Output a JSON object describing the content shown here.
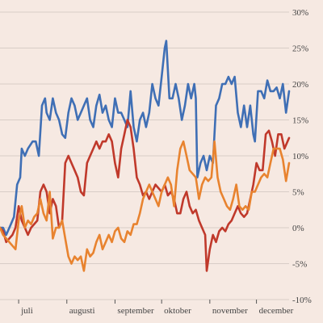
{
  "chart_data": {
    "type": "line",
    "title": "",
    "xlabel": "",
    "ylabel": "",
    "y_unit": "%",
    "ylim": [
      -10,
      30
    ],
    "yticks": [
      -10,
      -5,
      0,
      5,
      10,
      15,
      20,
      25,
      30
    ],
    "ytick_labels": [
      "-10%",
      "-5%",
      "0%",
      "5%",
      "10%",
      "15%",
      "20%",
      "25%",
      "30%"
    ],
    "y_axis_side": "right",
    "grid": "horizontal",
    "legend": "none",
    "x_domain": [
      "2023-06-19",
      "2023-12-22"
    ],
    "month_ticks": [
      {
        "label": "juli",
        "date": "2023-07-01"
      },
      {
        "label": "augusti",
        "date": "2023-08-01"
      },
      {
        "label": "september",
        "date": "2023-09-01"
      },
      {
        "label": "oktober",
        "date": "2023-10-01"
      },
      {
        "label": "november",
        "date": "2023-11-01"
      },
      {
        "label": "december",
        "date": "2023-12-01"
      }
    ],
    "series": [
      {
        "color": "#3f6fb5",
        "points": [
          [
            "2023-06-19",
            0
          ],
          [
            "2023-06-21",
            0
          ],
          [
            "2023-06-23",
            -1
          ],
          [
            "2023-06-26",
            0.5
          ],
          [
            "2023-06-28",
            1.5
          ],
          [
            "2023-06-30",
            6
          ],
          [
            "2023-07-02",
            7
          ],
          [
            "2023-07-03",
            11
          ],
          [
            "2023-07-05",
            10
          ],
          [
            "2023-07-07",
            11
          ],
          [
            "2023-07-10",
            12
          ],
          [
            "2023-07-12",
            12
          ],
          [
            "2023-07-14",
            10
          ],
          [
            "2023-07-16",
            17
          ],
          [
            "2023-07-18",
            18
          ],
          [
            "2023-07-19",
            16
          ],
          [
            "2023-07-21",
            15
          ],
          [
            "2023-07-23",
            18
          ],
          [
            "2023-07-25",
            16
          ],
          [
            "2023-07-27",
            15
          ],
          [
            "2023-07-29",
            13
          ],
          [
            "2023-07-31",
            12.5
          ],
          [
            "2023-08-02",
            16
          ],
          [
            "2023-08-04",
            18
          ],
          [
            "2023-08-06",
            17
          ],
          [
            "2023-08-08",
            15
          ],
          [
            "2023-08-10",
            16
          ],
          [
            "2023-08-12",
            17
          ],
          [
            "2023-08-14",
            18
          ],
          [
            "2023-08-16",
            15
          ],
          [
            "2023-08-18",
            14
          ],
          [
            "2023-08-20",
            17
          ],
          [
            "2023-08-22",
            18.5
          ],
          [
            "2023-08-24",
            16
          ],
          [
            "2023-08-26",
            17
          ],
          [
            "2023-08-28",
            15
          ],
          [
            "2023-08-30",
            14
          ],
          [
            "2023-09-01",
            18
          ],
          [
            "2023-09-03",
            16
          ],
          [
            "2023-09-05",
            16
          ],
          [
            "2023-09-07",
            15
          ],
          [
            "2023-09-09",
            14
          ],
          [
            "2023-09-11",
            19
          ],
          [
            "2023-09-13",
            14
          ],
          [
            "2023-09-15",
            12
          ],
          [
            "2023-09-17",
            15
          ],
          [
            "2023-09-19",
            16
          ],
          [
            "2023-09-21",
            14
          ],
          [
            "2023-09-23",
            16
          ],
          [
            "2023-09-25",
            20
          ],
          [
            "2023-09-27",
            18
          ],
          [
            "2023-09-29",
            17
          ],
          [
            "2023-10-01",
            21
          ],
          [
            "2023-10-03",
            25
          ],
          [
            "2023-10-04",
            26
          ],
          [
            "2023-10-06",
            18
          ],
          [
            "2023-10-08",
            18
          ],
          [
            "2023-10-10",
            20
          ],
          [
            "2023-10-12",
            18
          ],
          [
            "2023-10-14",
            15
          ],
          [
            "2023-10-16",
            17
          ],
          [
            "2023-10-18",
            20
          ],
          [
            "2023-10-20",
            18
          ],
          [
            "2023-10-22",
            20
          ],
          [
            "2023-10-23",
            18
          ],
          [
            "2023-10-24",
            7
          ],
          [
            "2023-10-26",
            9
          ],
          [
            "2023-10-28",
            10
          ],
          [
            "2023-10-30",
            8
          ],
          [
            "2023-11-01",
            10
          ],
          [
            "2023-11-03",
            9
          ],
          [
            "2023-11-05",
            17
          ],
          [
            "2023-11-07",
            18
          ],
          [
            "2023-11-09",
            20
          ],
          [
            "2023-11-11",
            20
          ],
          [
            "2023-11-13",
            21
          ],
          [
            "2023-11-15",
            20
          ],
          [
            "2023-11-17",
            21
          ],
          [
            "2023-11-19",
            16
          ],
          [
            "2023-11-21",
            14
          ],
          [
            "2023-11-23",
            17
          ],
          [
            "2023-11-25",
            14
          ],
          [
            "2023-11-27",
            17
          ],
          [
            "2023-11-29",
            13
          ],
          [
            "2023-11-30",
            12
          ],
          [
            "2023-12-02",
            19
          ],
          [
            "2023-12-04",
            19
          ],
          [
            "2023-12-06",
            18
          ],
          [
            "2023-12-08",
            20.5
          ],
          [
            "2023-12-10",
            19
          ],
          [
            "2023-12-12",
            19
          ],
          [
            "2023-12-14",
            19.5
          ],
          [
            "2023-12-16",
            18
          ],
          [
            "2023-12-18",
            20
          ],
          [
            "2023-12-20",
            16
          ],
          [
            "2023-12-22",
            19
          ]
        ]
      },
      {
        "color": "#c0392b",
        "points": [
          [
            "2023-06-19",
            0
          ],
          [
            "2023-06-21",
            -0.5
          ],
          [
            "2023-06-23",
            -2
          ],
          [
            "2023-06-25",
            -1.5
          ],
          [
            "2023-06-27",
            -1
          ],
          [
            "2023-06-29",
            0
          ],
          [
            "2023-07-01",
            3
          ],
          [
            "2023-07-03",
            1
          ],
          [
            "2023-07-05",
            0
          ],
          [
            "2023-07-07",
            -1
          ],
          [
            "2023-07-09",
            0
          ],
          [
            "2023-07-11",
            0.5
          ],
          [
            "2023-07-13",
            1
          ],
          [
            "2023-07-15",
            5
          ],
          [
            "2023-07-17",
            6
          ],
          [
            "2023-07-19",
            5
          ],
          [
            "2023-07-21",
            2
          ],
          [
            "2023-07-23",
            4
          ],
          [
            "2023-07-25",
            3
          ],
          [
            "2023-07-27",
            0
          ],
          [
            "2023-07-29",
            1
          ],
          [
            "2023-07-31",
            9
          ],
          [
            "2023-08-02",
            10
          ],
          [
            "2023-08-04",
            9
          ],
          [
            "2023-08-06",
            8
          ],
          [
            "2023-08-08",
            7
          ],
          [
            "2023-08-10",
            5
          ],
          [
            "2023-08-12",
            4.5
          ],
          [
            "2023-08-14",
            9
          ],
          [
            "2023-08-16",
            10
          ],
          [
            "2023-08-18",
            11
          ],
          [
            "2023-08-20",
            12
          ],
          [
            "2023-08-22",
            11
          ],
          [
            "2023-08-24",
            12
          ],
          [
            "2023-08-26",
            12
          ],
          [
            "2023-08-28",
            13
          ],
          [
            "2023-08-30",
            12
          ],
          [
            "2023-09-01",
            9
          ],
          [
            "2023-09-03",
            7
          ],
          [
            "2023-09-05",
            11
          ],
          [
            "2023-09-07",
            13
          ],
          [
            "2023-09-09",
            15
          ],
          [
            "2023-09-11",
            14
          ],
          [
            "2023-09-13",
            11
          ],
          [
            "2023-09-15",
            7
          ],
          [
            "2023-09-17",
            6
          ],
          [
            "2023-09-19",
            4.5
          ],
          [
            "2023-09-21",
            5
          ],
          [
            "2023-09-23",
            4
          ],
          [
            "2023-09-25",
            5
          ],
          [
            "2023-09-27",
            6
          ],
          [
            "2023-09-29",
            5.5
          ],
          [
            "2023-10-01",
            5
          ],
          [
            "2023-10-03",
            6
          ],
          [
            "2023-10-05",
            4.5
          ],
          [
            "2023-10-07",
            5
          ],
          [
            "2023-10-09",
            4
          ],
          [
            "2023-10-11",
            2
          ],
          [
            "2023-10-13",
            2
          ],
          [
            "2023-10-15",
            4
          ],
          [
            "2023-10-17",
            5
          ],
          [
            "2023-10-19",
            3
          ],
          [
            "2023-10-21",
            2
          ],
          [
            "2023-10-23",
            2.5
          ],
          [
            "2023-10-25",
            1
          ],
          [
            "2023-10-27",
            0
          ],
          [
            "2023-10-29",
            -1
          ],
          [
            "2023-10-30",
            -6
          ],
          [
            "2023-11-01",
            -3
          ],
          [
            "2023-11-03",
            -1
          ],
          [
            "2023-11-05",
            -2
          ],
          [
            "2023-11-07",
            -0.5
          ],
          [
            "2023-11-09",
            0
          ],
          [
            "2023-11-11",
            -0.5
          ],
          [
            "2023-11-13",
            0.5
          ],
          [
            "2023-11-15",
            1
          ],
          [
            "2023-11-17",
            2
          ],
          [
            "2023-11-19",
            3
          ],
          [
            "2023-11-21",
            2
          ],
          [
            "2023-11-23",
            1.5
          ],
          [
            "2023-11-25",
            2
          ],
          [
            "2023-11-27",
            4
          ],
          [
            "2023-11-29",
            6
          ],
          [
            "2023-12-01",
            9
          ],
          [
            "2023-12-03",
            8
          ],
          [
            "2023-12-05",
            8
          ],
          [
            "2023-12-07",
            13
          ],
          [
            "2023-12-09",
            13.5
          ],
          [
            "2023-12-11",
            12
          ],
          [
            "2023-12-13",
            10
          ],
          [
            "2023-12-15",
            13
          ],
          [
            "2023-12-17",
            13
          ],
          [
            "2023-12-19",
            11
          ],
          [
            "2023-12-22",
            12.5
          ]
        ]
      },
      {
        "color": "#e8832f",
        "points": [
          [
            "2023-06-19",
            0
          ],
          [
            "2023-06-21",
            -1
          ],
          [
            "2023-06-23",
            -1.5
          ],
          [
            "2023-06-25",
            -2
          ],
          [
            "2023-06-27",
            -2.5
          ],
          [
            "2023-06-29",
            -3
          ],
          [
            "2023-07-01",
            1
          ],
          [
            "2023-07-03",
            3
          ],
          [
            "2023-07-05",
            0
          ],
          [
            "2023-07-07",
            1
          ],
          [
            "2023-07-09",
            0.5
          ],
          [
            "2023-07-11",
            1.5
          ],
          [
            "2023-07-13",
            2
          ],
          [
            "2023-07-15",
            4
          ],
          [
            "2023-07-17",
            2
          ],
          [
            "2023-07-19",
            1
          ],
          [
            "2023-07-21",
            5
          ],
          [
            "2023-07-23",
            -1.5
          ],
          [
            "2023-07-25",
            0
          ],
          [
            "2023-07-27",
            0
          ],
          [
            "2023-07-29",
            1
          ],
          [
            "2023-07-31",
            -1.5
          ],
          [
            "2023-08-02",
            -4
          ],
          [
            "2023-08-04",
            -5
          ],
          [
            "2023-08-06",
            -4
          ],
          [
            "2023-08-08",
            -4.5
          ],
          [
            "2023-08-10",
            -4
          ],
          [
            "2023-08-12",
            -6
          ],
          [
            "2023-08-14",
            -3
          ],
          [
            "2023-08-16",
            -4
          ],
          [
            "2023-08-18",
            -3.5
          ],
          [
            "2023-08-20",
            -2
          ],
          [
            "2023-08-22",
            -1
          ],
          [
            "2023-08-24",
            -3
          ],
          [
            "2023-08-26",
            -2
          ],
          [
            "2023-08-28",
            -1
          ],
          [
            "2023-08-30",
            -2
          ],
          [
            "2023-09-01",
            -0.5
          ],
          [
            "2023-09-03",
            0
          ],
          [
            "2023-09-05",
            -1.5
          ],
          [
            "2023-09-07",
            -2
          ],
          [
            "2023-09-09",
            -0.5
          ],
          [
            "2023-09-11",
            -1
          ],
          [
            "2023-09-13",
            0.5
          ],
          [
            "2023-09-15",
            0.5
          ],
          [
            "2023-09-17",
            2
          ],
          [
            "2023-09-19",
            4
          ],
          [
            "2023-09-21",
            5
          ],
          [
            "2023-09-23",
            6
          ],
          [
            "2023-09-25",
            5
          ],
          [
            "2023-09-27",
            4
          ],
          [
            "2023-09-29",
            3
          ],
          [
            "2023-10-01",
            5
          ],
          [
            "2023-10-03",
            6
          ],
          [
            "2023-10-05",
            7
          ],
          [
            "2023-10-07",
            6
          ],
          [
            "2023-10-09",
            3
          ],
          [
            "2023-10-11",
            8
          ],
          [
            "2023-10-13",
            11
          ],
          [
            "2023-10-15",
            12
          ],
          [
            "2023-10-17",
            10
          ],
          [
            "2023-10-19",
            8
          ],
          [
            "2023-10-21",
            7.5
          ],
          [
            "2023-10-23",
            7
          ],
          [
            "2023-10-25",
            4
          ],
          [
            "2023-10-27",
            6
          ],
          [
            "2023-10-29",
            7
          ],
          [
            "2023-10-31",
            6.5
          ],
          [
            "2023-11-02",
            7
          ],
          [
            "2023-11-04",
            12
          ],
          [
            "2023-11-06",
            7
          ],
          [
            "2023-11-08",
            5
          ],
          [
            "2023-11-10",
            4
          ],
          [
            "2023-11-12",
            3
          ],
          [
            "2023-11-14",
            2.5
          ],
          [
            "2023-11-16",
            4
          ],
          [
            "2023-11-18",
            6
          ],
          [
            "2023-11-20",
            3
          ],
          [
            "2023-11-22",
            2.5
          ],
          [
            "2023-11-24",
            3
          ],
          [
            "2023-11-26",
            2.5
          ],
          [
            "2023-11-28",
            5
          ],
          [
            "2023-11-30",
            5
          ],
          [
            "2023-12-02",
            6
          ],
          [
            "2023-12-04",
            7
          ],
          [
            "2023-12-06",
            7.5
          ],
          [
            "2023-12-08",
            7
          ],
          [
            "2023-12-10",
            9
          ],
          [
            "2023-12-12",
            11
          ],
          [
            "2023-12-14",
            11
          ],
          [
            "2023-12-16",
            11
          ],
          [
            "2023-12-18",
            9.5
          ],
          [
            "2023-12-20",
            6.5
          ],
          [
            "2023-12-22",
            9
          ]
        ]
      }
    ]
  }
}
